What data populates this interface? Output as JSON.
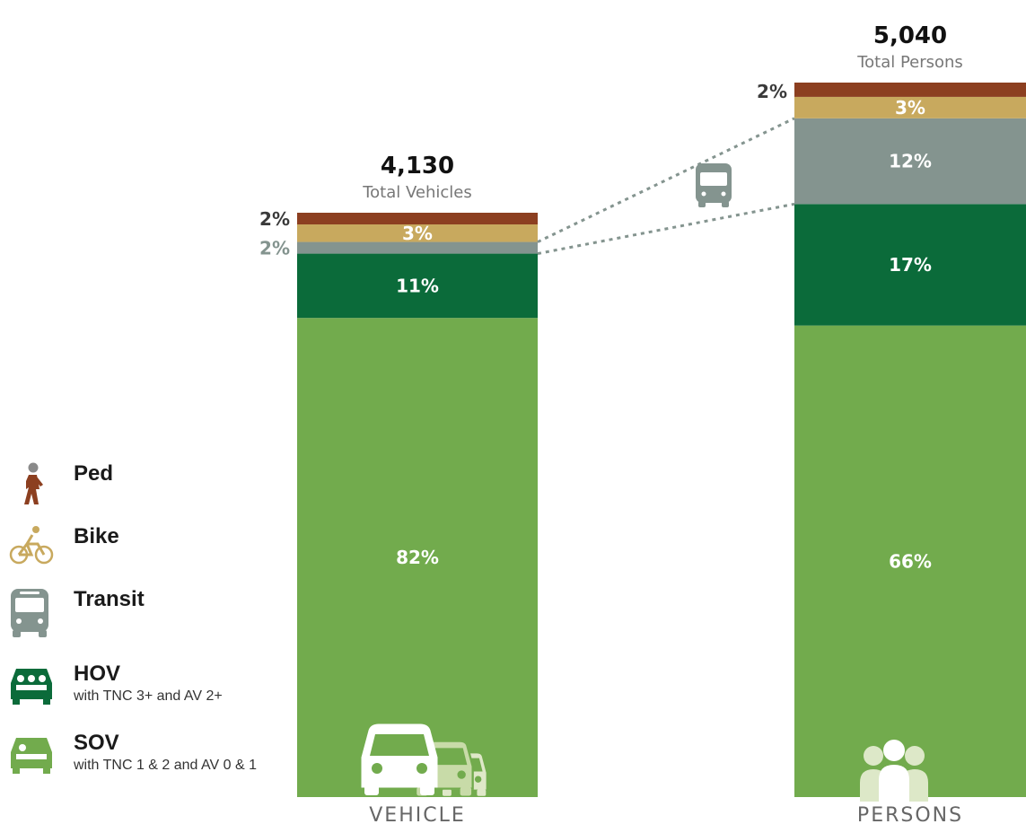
{
  "colors": {
    "Ped": "#8c3f20",
    "Bike": "#c8a95e",
    "Transit": "#84948f",
    "HOV": "#0b6b3a",
    "SOV": "#72ab4d"
  },
  "legend": [
    {
      "label": "Ped",
      "sublabel": "",
      "icon": "pedestrian-icon"
    },
    {
      "label": "Bike",
      "sublabel": "",
      "icon": "bicycle-icon"
    },
    {
      "label": "Transit",
      "sublabel": "",
      "icon": "bus-icon"
    },
    {
      "label": "HOV",
      "sublabel": "with TNC 3+ and AV 2+",
      "icon": "carpool-icon"
    },
    {
      "label": "SOV",
      "sublabel": "with TNC 1 & 2 and AV 0 & 1",
      "icon": "car-icon"
    }
  ],
  "chart_data": {
    "type": "bar",
    "stacked": true,
    "categories": [
      "VEHICLE",
      "PERSONS"
    ],
    "totals": [
      {
        "value": "4,130",
        "label": "Total Vehicles"
      },
      {
        "value": "5,040",
        "label": "Total Persons"
      }
    ],
    "series": [
      {
        "name": "SOV",
        "values": [
          82,
          66
        ]
      },
      {
        "name": "HOV",
        "values": [
          11,
          17
        ]
      },
      {
        "name": "Transit",
        "values": [
          2,
          12
        ]
      },
      {
        "name": "Bike",
        "values": [
          3,
          3
        ]
      },
      {
        "name": "Ped",
        "values": [
          2,
          2
        ]
      }
    ],
    "value_labels": {
      "SOV": [
        "82%",
        "66%"
      ],
      "HOV": [
        "11%",
        "17%"
      ],
      "Transit": [
        "2%",
        "12%"
      ],
      "Bike": [
        "3%",
        "3%"
      ],
      "Ped": [
        "2%",
        "2%"
      ]
    },
    "bar_icons": [
      "vehicles-icon",
      "persons-icon"
    ],
    "connector_icon": "bus-icon"
  }
}
